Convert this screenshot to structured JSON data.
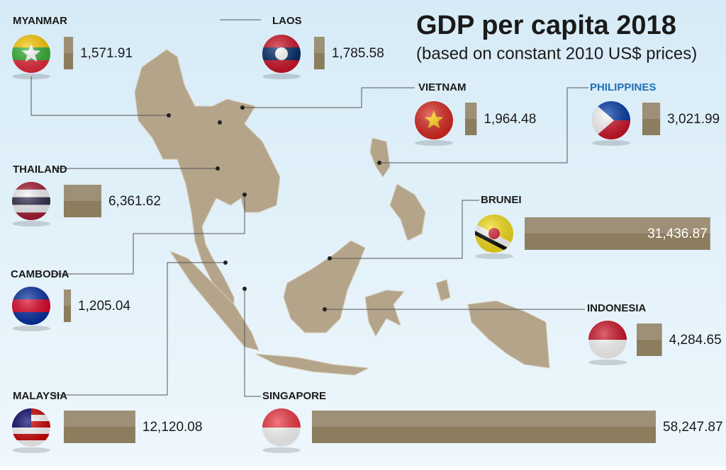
{
  "chart_data": {
    "type": "bar",
    "title": "GDP per capita 2018",
    "subtitle": "(based on constant 2010 US$ prices)",
    "categories": [
      "MYANMAR",
      "LAOS",
      "VIETNAM",
      "PHILIPPINES",
      "THAILAND",
      "BRUNEI",
      "CAMBODIA",
      "INDONESIA",
      "MALAYSIA",
      "SINGAPORE"
    ],
    "values": [
      1571.91,
      1785.58,
      1964.48,
      3021.99,
      6361.62,
      31436.87,
      1205.04,
      4284.65,
      12120.08,
      58247.87
    ],
    "value_labels": [
      "1,571.91",
      "1,785.58",
      "1,964.48",
      "3,021.99",
      "6,361.62",
      "31,436.87",
      "1,205.04",
      "4,284.65",
      "12,120.08",
      "58,247.87"
    ],
    "color": "#8c7d5e"
  }
}
